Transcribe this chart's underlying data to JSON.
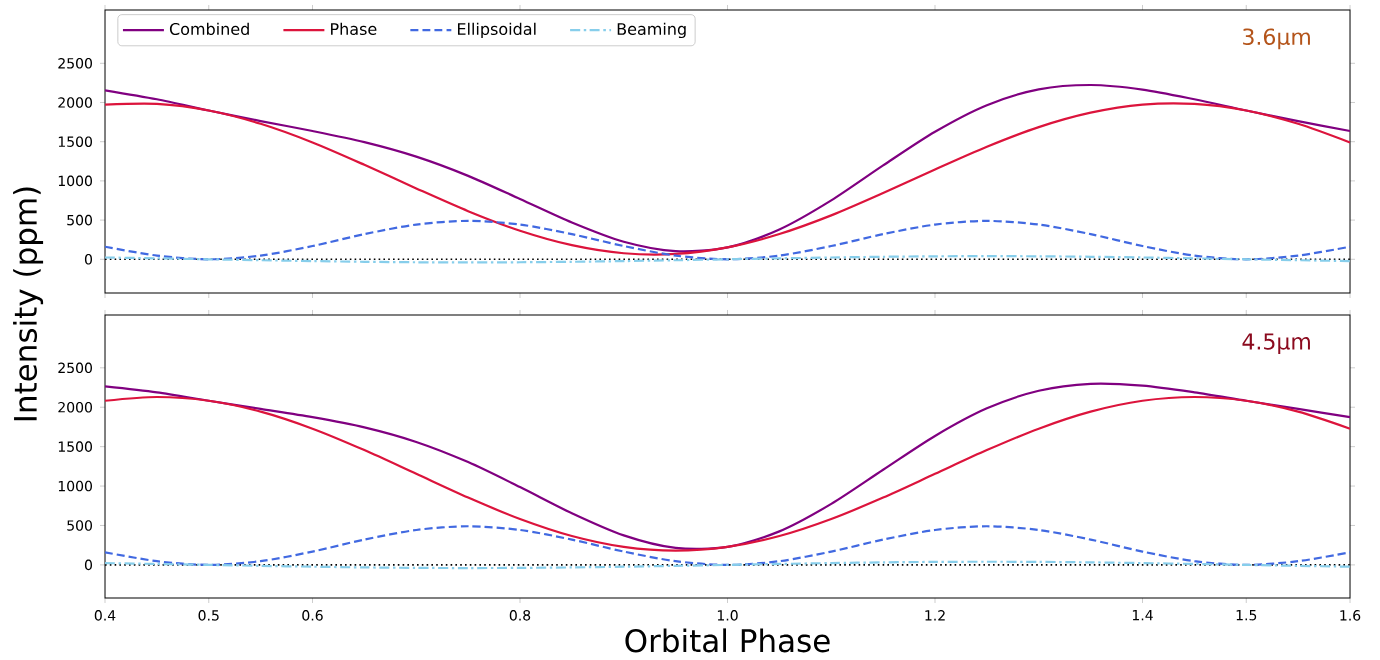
{
  "chart_data": [
    {
      "type": "line",
      "ylabel": "Intensity (ppm)",
      "annotations": [
        "3.6μm"
      ],
      "x": [
        0.4,
        0.45,
        0.5,
        0.55,
        0.6,
        0.65,
        0.7,
        0.75,
        0.8,
        0.85,
        0.9,
        0.95,
        1.0,
        1.05,
        1.1,
        1.15,
        1.2,
        1.25,
        1.3,
        1.35,
        1.4,
        1.45,
        1.5,
        1.55,
        1.6
      ],
      "series": [
        {
          "name": "Combined",
          "color": "#800080",
          "line_style": "solid",
          "values": [
            2156,
            2041,
            1898,
            1763,
            1636,
            1494,
            1309,
            1064,
            769,
            469,
            223,
            103,
            152,
            381,
            752,
            1198,
            1627,
            1966,
            2167,
            2223,
            2165,
            2041,
            1898,
            1763,
            1636
          ]
        },
        {
          "name": "Phase",
          "color": "#dc143c",
          "line_style": "solid",
          "values": [
            1973,
            1982,
            1898,
            1728,
            1490,
            1205,
            904,
            614,
            364,
            180,
            77,
            68,
            152,
            322,
            560,
            845,
            1146,
            1436,
            1686,
            1870,
            1973,
            1982,
            1898,
            1728,
            1490
          ]
        },
        {
          "name": "Ellipsoidal",
          "color": "#4169e1",
          "line_style": "dashed",
          "values": [
            160,
            47,
            0,
            47,
            169,
            321,
            443,
            490,
            443,
            321,
            169,
            47,
            0,
            47,
            169,
            321,
            443,
            490,
            443,
            321,
            169,
            47,
            0,
            47,
            160
          ]
        },
        {
          "name": "Beaming",
          "color": "#87ceeb",
          "line_style": "dashdot",
          "values": [
            23,
            12,
            0,
            -12,
            -23,
            -32,
            -38,
            -40,
            -38,
            -32,
            -23,
            -12,
            0,
            12,
            23,
            32,
            38,
            40,
            38,
            32,
            23,
            12,
            0,
            -12,
            -23
          ]
        }
      ],
      "ref_lines": [
        {
          "axis": "y",
          "value": 0,
          "color": "#000000",
          "line_style": "dotted"
        }
      ],
      "xlim": [
        0.4,
        1.6
      ],
      "ylim": [
        -430,
        3180
      ],
      "xticks": [
        0.4,
        0.5,
        0.6,
        0.8,
        1.0,
        1.2,
        1.4,
        1.5,
        1.6
      ],
      "yticks": [
        0,
        500,
        1000,
        1500,
        2000,
        2500
      ],
      "tick_labels": "y",
      "legend": "top left",
      "grid": false,
      "marker": "none"
    },
    {
      "type": "line",
      "xlabel": "Orbital Phase",
      "annotations": [
        "4.5μm"
      ],
      "x": [
        0.4,
        0.45,
        0.5,
        0.55,
        0.6,
        0.65,
        0.7,
        0.75,
        0.8,
        0.85,
        0.9,
        0.95,
        1.0,
        1.05,
        1.1,
        1.15,
        1.2,
        1.25,
        1.3,
        1.35,
        1.4,
        1.45,
        1.5,
        1.55,
        1.6
      ],
      "series": [
        {
          "color": "#800080",
          "line_style": "solid",
          "values": [
            2265,
            2189,
            2082,
            1979,
            1874,
            1745,
            1560,
            1304,
            987,
            655,
            374,
            215,
            228,
            425,
            774,
            1207,
            1636,
            1986,
            2209,
            2297,
            2274,
            2189,
            2082,
            1979,
            1874
          ]
        },
        {
          "color": "#dc143c",
          "line_style": "solid",
          "values": [
            2082,
            2130,
            2082,
            1944,
            1728,
            1456,
            1155,
            854,
            582,
            366,
            228,
            180,
            228,
            366,
            582,
            854,
            1155,
            1456,
            1728,
            1944,
            2082,
            2130,
            2082,
            1944,
            1728
          ]
        },
        {
          "color": "#4169e1",
          "line_style": "dashed",
          "values": [
            160,
            47,
            0,
            47,
            169,
            321,
            443,
            490,
            443,
            321,
            169,
            47,
            0,
            47,
            169,
            321,
            443,
            490,
            443,
            321,
            169,
            47,
            0,
            47,
            160
          ]
        },
        {
          "color": "#87ceeb",
          "line_style": "dashdot",
          "values": [
            23,
            12,
            0,
            -12,
            -23,
            -32,
            -38,
            -40,
            -38,
            -32,
            -23,
            -12,
            0,
            12,
            23,
            32,
            38,
            40,
            38,
            32,
            23,
            12,
            0,
            -12,
            -23
          ]
        }
      ],
      "ref_lines": [
        {
          "axis": "y",
          "value": 0,
          "color": "#000000",
          "line_style": "dotted"
        }
      ],
      "xlim": [
        0.4,
        1.6
      ],
      "ylim": [
        -420,
        3170
      ],
      "xticks": [
        0.4,
        0.5,
        0.6,
        0.8,
        {
          "value": 1.0,
          "label": "1.0"
        },
        1.2,
        1.4,
        1.5,
        1.6
      ],
      "yticks": [
        0,
        500,
        1000,
        1500,
        2000,
        2500
      ],
      "legend": false,
      "grid": false,
      "marker": "none"
    }
  ]
}
